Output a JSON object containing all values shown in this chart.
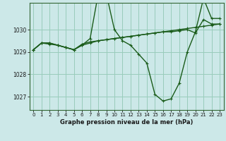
{
  "title": "Graphe pression niveau de la mer (hPa)",
  "xlabel_ticks": [
    0,
    1,
    2,
    3,
    4,
    5,
    6,
    7,
    8,
    9,
    10,
    11,
    12,
    13,
    14,
    15,
    16,
    17,
    18,
    19,
    20,
    21,
    22,
    23
  ],
  "yticks": [
    1027,
    1028,
    1029,
    1030
  ],
  "ylim": [
    1026.4,
    1031.2
  ],
  "xlim": [
    -0.5,
    23.5
  ],
  "bg_color": "#cce8e8",
  "grid_color": "#99ccbb",
  "line_color": "#1a5c1a",
  "markersize": 2.5,
  "linewidth": 1.0,
  "series": [
    [
      1029.1,
      1029.4,
      1029.4,
      1029.3,
      1029.2,
      1029.1,
      1029.3,
      1029.6,
      1031.6,
      1031.6,
      1030.0,
      1029.5,
      1029.3,
      1028.9,
      1028.5,
      1027.1,
      1026.8,
      1026.9,
      1027.6,
      1029.0,
      1029.9,
      1031.4,
      1030.5,
      1030.5
    ],
    [
      1029.1,
      1029.4,
      1029.4,
      1029.3,
      1029.2,
      1029.1,
      1029.35,
      1029.45,
      1029.5,
      1029.55,
      1029.6,
      1029.65,
      1029.7,
      1029.75,
      1029.8,
      1029.85,
      1029.9,
      1029.95,
      1030.0,
      1030.05,
      1030.1,
      1030.15,
      1030.2,
      1030.25
    ],
    [
      1029.1,
      1029.4,
      1029.35,
      1029.3,
      1029.2,
      1029.1,
      1029.3,
      1029.4,
      1029.5,
      1029.55,
      1029.6,
      1029.65,
      1029.7,
      1029.75,
      1029.8,
      1029.85,
      1029.9,
      1029.9,
      1029.95,
      1030.0,
      1029.85,
      1030.45,
      1030.25,
      1030.25
    ]
  ]
}
